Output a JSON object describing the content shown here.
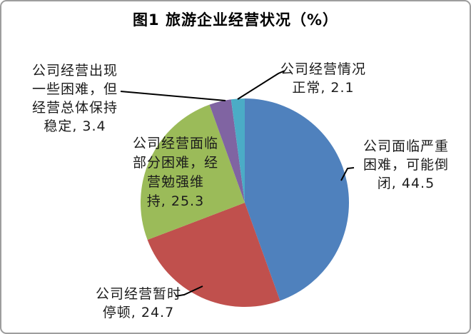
{
  "title": "图1  旅游企业经营状况（%）",
  "chart_data": {
    "type": "pie",
    "title": "图1  旅游企业经营状况（%）",
    "value_unit": "%",
    "start_angle_deg": 0,
    "direction": "clockwise",
    "legend": "none",
    "label_style": "callout",
    "slices": [
      {
        "label": "公司面临严重困难，可能倒闭",
        "value": 44.5,
        "color": "#4F81BD"
      },
      {
        "label": "公司经营暂时停顿",
        "value": 24.7,
        "color": "#C0504D"
      },
      {
        "label": "公司经营面临部分困难，经营勉强维持",
        "value": 25.3,
        "color": "#9BBB59"
      },
      {
        "label": "公司经营出现一些困难，但经营总体保持稳定",
        "value": 3.4,
        "color": "#8064A2"
      },
      {
        "label": "公司经营情况正常",
        "value": 2.1,
        "color": "#4BACC6"
      }
    ]
  },
  "callouts": {
    "severe": "公司面临严重\n困难，可能倒\n闭, 44.5",
    "paused": "公司经营暂时\n停顿, 24.7",
    "partial": "公司经营面临\n部分困难，经\n营勉强维\n持, 25.3",
    "some_difficulty": "公司经营出现\n一些困难，但\n经营总体保持\n稳定, 3.4",
    "normal": "公司经营情况\n正常, 2.1"
  }
}
